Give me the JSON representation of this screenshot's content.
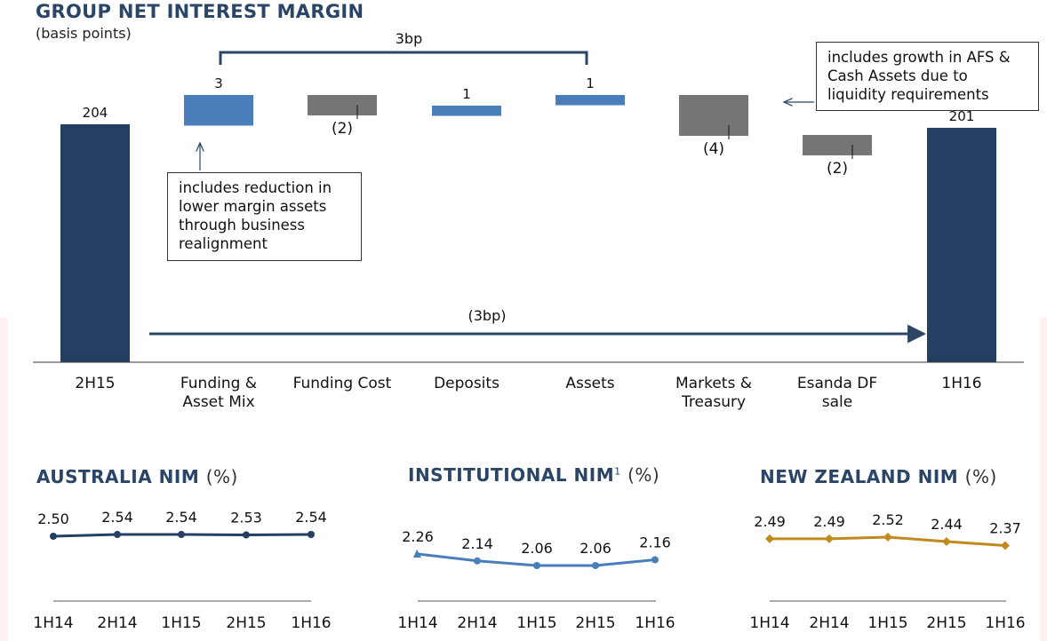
{
  "chart_data": [
    {
      "type": "bar",
      "subtype": "waterfall",
      "title": "GROUP NET INTEREST MARGIN",
      "subtitle": "(basis points)",
      "categories": [
        "2H15",
        "Funding & Asset Mix",
        "Funding Cost",
        "Deposits",
        "Assets",
        "Markets & Treasury",
        "Esanda DF sale",
        "1H16"
      ],
      "category_lines": [
        [
          "2H15"
        ],
        [
          "Funding &",
          "Asset Mix"
        ],
        [
          "Funding Cost"
        ],
        [
          "Deposits"
        ],
        [
          "Assets"
        ],
        [
          "Markets &",
          "Treasury"
        ],
        [
          "Esanda DF",
          "sale"
        ],
        [
          "1H16"
        ]
      ],
      "values": [
        204,
        3,
        -2,
        1,
        1,
        -4,
        -2,
        201
      ],
      "bar_kinds": [
        "total",
        "delta",
        "delta",
        "delta",
        "delta",
        "delta",
        "delta",
        "total"
      ],
      "value_labels": [
        "204",
        "3",
        "(2)",
        "1",
        "1",
        "(4)",
        "(2)",
        "201"
      ],
      "bracket_label": "3bp",
      "overall_label": "(3bp)",
      "annotations": [
        {
          "text_lines": [
            "includes reduction in",
            "lower margin assets",
            "through business",
            "realignment"
          ]
        },
        {
          "text_lines": [
            "includes growth in AFS &",
            "Cash Assets due to",
            "liquidity requirements"
          ]
        }
      ],
      "colors": {
        "total": "#243f62",
        "positive": "#4a7ebb",
        "negative": "#767676",
        "arrow": "#2b4566"
      }
    },
    {
      "type": "line",
      "title": "AUSTRALIA NIM",
      "unit": "(%)",
      "categories": [
        "1H14",
        "2H14",
        "1H15",
        "2H15",
        "1H16"
      ],
      "values": [
        2.5,
        2.54,
        2.54,
        2.53,
        2.54
      ],
      "value_labels": [
        "2.50",
        "2.54",
        "2.54",
        "2.53",
        "2.54"
      ],
      "color": "#243f62"
    },
    {
      "type": "line",
      "title": "INSTITUTIONAL NIM",
      "footnote": "1",
      "unit": "(%)",
      "categories": [
        "1H14",
        "2H14",
        "1H15",
        "2H15",
        "1H16"
      ],
      "values": [
        2.26,
        2.14,
        2.06,
        2.06,
        2.16
      ],
      "value_labels": [
        "2.26",
        "2.14",
        "2.06",
        "2.06",
        "2.16"
      ],
      "color": "#4a7ebb"
    },
    {
      "type": "line",
      "title": "NEW ZEALAND NIM",
      "unit": "(%)",
      "categories": [
        "1H14",
        "2H14",
        "1H15",
        "2H15",
        "1H16"
      ],
      "values": [
        2.49,
        2.49,
        2.52,
        2.44,
        2.37
      ],
      "value_labels": [
        "2.49",
        "2.49",
        "2.52",
        "2.44",
        "2.37"
      ],
      "color": "#c08a1e"
    }
  ]
}
